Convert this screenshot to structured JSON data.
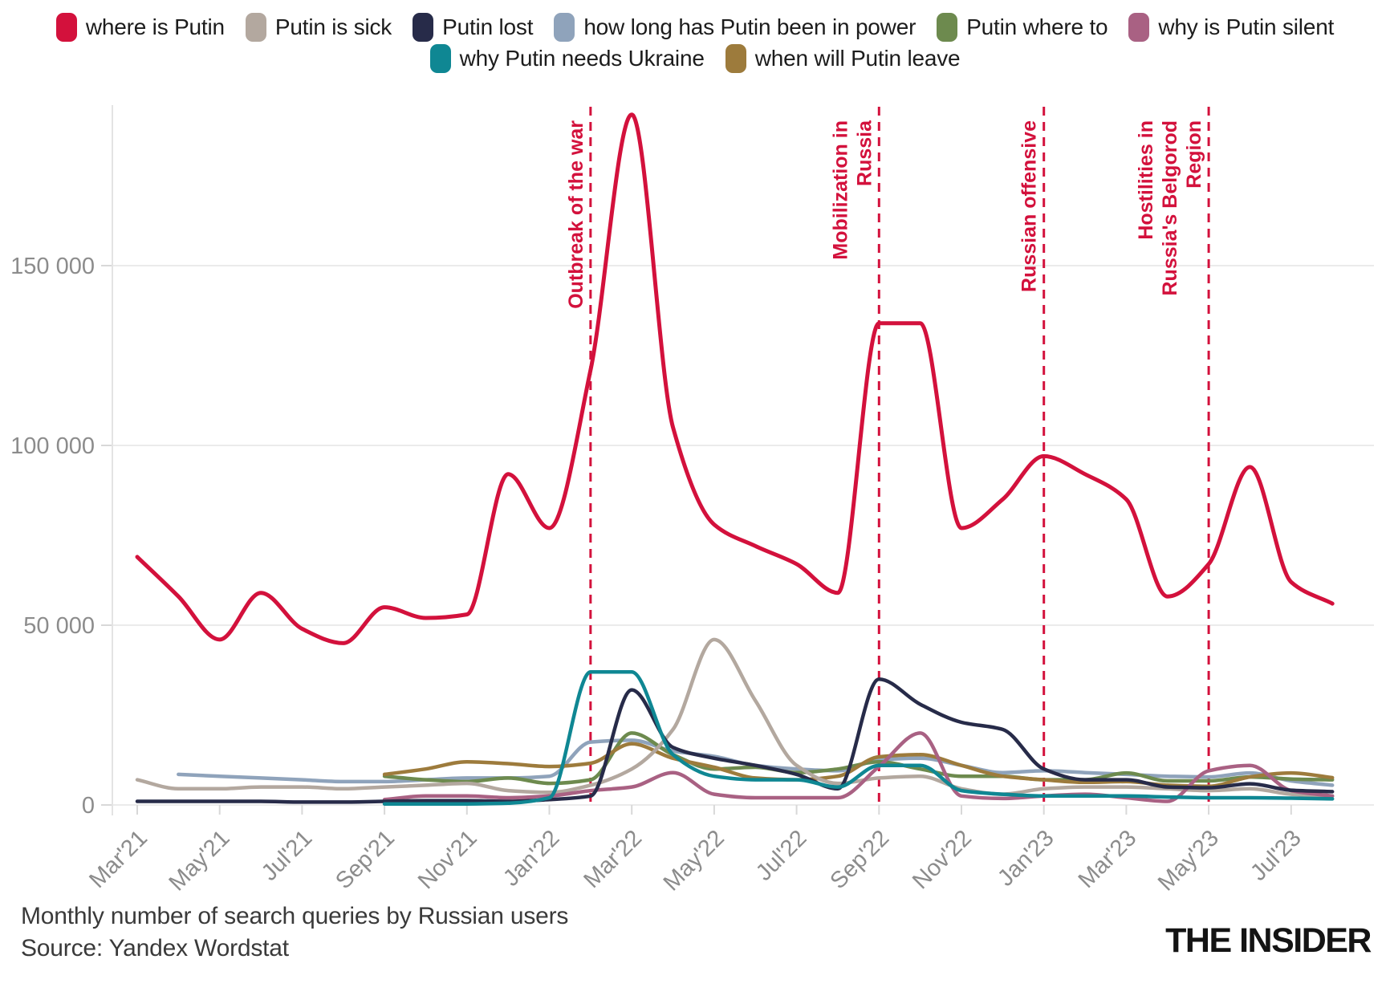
{
  "legend": {
    "rows": [
      [
        {
          "label": "where is Putin",
          "color": "#d3113c"
        },
        {
          "label": "Putin is sick",
          "color": "#b3a89f"
        },
        {
          "label": "Putin lost",
          "color": "#272b49"
        },
        {
          "label": "how long has Putin been in power",
          "color": "#8fa3bb"
        },
        {
          "label": "Putin where to",
          "color": "#6d8a4e"
        },
        {
          "label": "why is Putin silent",
          "color": "#a96183"
        }
      ],
      [
        {
          "label": "why Putin needs Ukraine",
          "color": "#0f8793"
        },
        {
          "label": "when will Putin leave",
          "color": "#9d7b3c"
        }
      ]
    ]
  },
  "chart_data": {
    "type": "line",
    "title": "Monthly number of search queries by Russian users",
    "x": [
      "Mar'21",
      "Apr'21",
      "May'21",
      "Jun'21",
      "Jul'21",
      "Aug'21",
      "Sep'21",
      "Oct'21",
      "Nov'21",
      "Dec'21",
      "Jan'22",
      "Feb'22",
      "Mar'22",
      "Apr'22",
      "May'22",
      "Jun'22",
      "Jul'22",
      "Aug'22",
      "Sep'22",
      "Oct'22",
      "Nov'22",
      "Dec'22",
      "Jan'23",
      "Feb'23",
      "Mar'23",
      "Apr'23",
      "May'23",
      "Jun'23",
      "Jul'23",
      "Aug'23"
    ],
    "x_tick_labels": [
      "Mar'21",
      "May'21",
      "Jul'21",
      "Sep'21",
      "Nov'21",
      "Jan'22",
      "Mar'22",
      "May'22",
      "Jul'22",
      "Sep'22",
      "Nov'22",
      "Jan'23",
      "Mar'23",
      "May'23",
      "Jul'23"
    ],
    "y_ticks": [
      0,
      50000,
      100000,
      150000
    ],
    "y_tick_labels": [
      "0",
      "50 000",
      "100 000",
      "150 000"
    ],
    "ylim": [
      0,
      195000
    ],
    "grid": true,
    "legend_position": "top",
    "series": [
      {
        "name": "how long has Putin been in power",
        "color": "#8fa3bb",
        "values": [
          null,
          8500,
          8000,
          7500,
          7000,
          6500,
          6500,
          7000,
          7500,
          7500,
          8000,
          17500,
          18000,
          15000,
          13500,
          11000,
          10000,
          9500,
          12500,
          13000,
          11000,
          9000,
          9500,
          9000,
          8500,
          8000,
          7800,
          8900,
          6700,
          5500
        ]
      },
      {
        "name": "Putin where to",
        "color": "#6d8a4e",
        "values": [
          null,
          null,
          null,
          null,
          null,
          null,
          8000,
          7000,
          6500,
          7500,
          6000,
          7000,
          20000,
          14000,
          10000,
          10500,
          9000,
          10000,
          12000,
          10000,
          8000,
          8000,
          7000,
          7000,
          8900,
          6700,
          6700,
          7800,
          7200,
          7000
        ]
      },
      {
        "name": "when will Putin leave",
        "color": "#9d7b3c",
        "values": [
          null,
          null,
          null,
          null,
          null,
          null,
          8500,
          10000,
          12000,
          11500,
          10700,
          11600,
          17000,
          13000,
          10500,
          7500,
          7000,
          8000,
          13400,
          14000,
          11000,
          8000,
          7000,
          6300,
          6500,
          5500,
          5200,
          7800,
          8900,
          7600
        ]
      },
      {
        "name": "Putin is sick",
        "color": "#b3a89f",
        "values": [
          7000,
          4500,
          4500,
          5000,
          5000,
          4500,
          5000,
          5500,
          6000,
          4000,
          3500,
          5500,
          10000,
          21000,
          46000,
          29000,
          11000,
          6000,
          7500,
          8000,
          4500,
          3000,
          4500,
          5000,
          5000,
          4500,
          4000,
          4500,
          3000,
          2500
        ]
      },
      {
        "name": "why is Putin silent",
        "color": "#a96183",
        "values": [
          null,
          null,
          null,
          null,
          null,
          null,
          1500,
          2500,
          2500,
          2000,
          2500,
          4000,
          5000,
          9000,
          3000,
          2000,
          2000,
          2000,
          10700,
          20000,
          2500,
          1800,
          2500,
          3000,
          2000,
          1000,
          9500,
          11000,
          4000,
          2500
        ]
      },
      {
        "name": "Putin lost",
        "color": "#272b49",
        "values": [
          1000,
          1000,
          1000,
          1000,
          800,
          800,
          1000,
          1200,
          1200,
          1000,
          1500,
          2500,
          32000,
          16000,
          13000,
          11000,
          8500,
          4500,
          35000,
          28000,
          23000,
          21000,
          10000,
          7000,
          7000,
          5000,
          4800,
          5900,
          4100,
          3700
        ]
      },
      {
        "name": "why Putin needs Ukraine",
        "color": "#0f8793",
        "values": [
          null,
          null,
          null,
          null,
          null,
          null,
          300,
          300,
          300,
          500,
          2000,
          37000,
          37000,
          14000,
          8000,
          7000,
          7000,
          5000,
          11000,
          11000,
          4000,
          3000,
          2500,
          2500,
          2500,
          2200,
          2000,
          2000,
          1900,
          1700
        ]
      },
      {
        "name": "where is Putin",
        "color": "#d3113c",
        "values": [
          69000,
          58000,
          46000,
          59000,
          49000,
          45000,
          55000,
          52000,
          53000,
          92000,
          77000,
          121000,
          192000,
          105000,
          78000,
          72000,
          67000,
          59000,
          134000,
          134000,
          77000,
          85000,
          97000,
          92000,
          85000,
          58000,
          67000,
          94000,
          62000,
          56000
        ]
      }
    ],
    "annotations": [
      {
        "lines": [
          "Outbreak of the war"
        ],
        "month_index": 11,
        "color": "#d3113c"
      },
      {
        "lines": [
          "Mobilization in",
          "Russia"
        ],
        "month_index": 18,
        "color": "#d3113c"
      },
      {
        "lines": [
          "Russian offensive"
        ],
        "month_index": 22,
        "color": "#d3113c"
      },
      {
        "lines": [
          "Hostilities in",
          "Russia's Belgorod",
          "Region"
        ],
        "month_index": 26,
        "color": "#d3113c"
      }
    ]
  },
  "footer": {
    "caption": "Monthly number of search queries by Russian users",
    "source": "Source: Yandex Wordstat"
  },
  "logo": {
    "text": "THE INSIDER"
  }
}
